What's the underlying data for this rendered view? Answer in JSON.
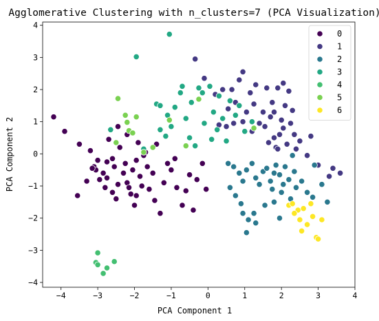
{
  "chart_data": {
    "type": "scatter",
    "title": "Agglomerative Clustering with n_clusters=7 (PCA Visualization)",
    "xlabel": "PCA Component 1",
    "ylabel": "PCA Component 2",
    "xlim": [
      -4.5,
      4.0
    ],
    "ylim": [
      -4.15,
      4.1
    ],
    "xticks": [
      -4,
      -3,
      -2,
      -1,
      0,
      1,
      2,
      3,
      4
    ],
    "yticks": [
      -4,
      -3,
      -2,
      -1,
      0,
      1,
      2,
      3,
      4
    ],
    "grid": false,
    "legend_position": "top-right",
    "series": [
      {
        "name": "0",
        "color": "#440154",
        "points": [
          [
            -4.2,
            1.15
          ],
          [
            -3.9,
            0.7
          ],
          [
            -3.5,
            0.3
          ],
          [
            -3.2,
            0.1
          ],
          [
            -3.1,
            -0.4
          ],
          [
            -3.05,
            -0.5
          ],
          [
            -3.0,
            -0.2
          ],
          [
            -2.95,
            -0.8
          ],
          [
            -2.85,
            -0.6
          ],
          [
            -3.3,
            -0.85
          ],
          [
            -3.55,
            -1.3
          ],
          [
            -2.75,
            -0.75
          ],
          [
            -2.7,
            0.45
          ],
          [
            -2.6,
            -0.15
          ],
          [
            -2.6,
            -1.2
          ],
          [
            -2.5,
            -1.4
          ],
          [
            -2.45,
            -0.95
          ],
          [
            -2.4,
            0.2
          ],
          [
            -2.3,
            -0.6
          ],
          [
            -2.25,
            -0.3
          ],
          [
            -2.2,
            -0.9
          ],
          [
            -2.1,
            -1.25
          ],
          [
            -2.0,
            -1.6
          ],
          [
            -2.05,
            -0.5
          ],
          [
            -1.95,
            -0.2
          ],
          [
            -1.9,
            0.35
          ],
          [
            -1.85,
            -0.7
          ],
          [
            -1.8,
            -1.0
          ],
          [
            -1.7,
            0.05
          ],
          [
            -1.65,
            -0.4
          ],
          [
            -1.6,
            -1.1
          ],
          [
            -1.5,
            -0.6
          ],
          [
            -1.45,
            -1.45
          ],
          [
            -1.4,
            0.3
          ],
          [
            -1.3,
            -1.85
          ],
          [
            -1.2,
            -0.9
          ],
          [
            -1.0,
            -0.5
          ],
          [
            -0.9,
            -0.15
          ],
          [
            -0.85,
            -1.05
          ],
          [
            -0.7,
            -1.6
          ],
          [
            -0.6,
            -1.15
          ],
          [
            -0.5,
            -0.65
          ],
          [
            -0.4,
            -1.75
          ],
          [
            -0.3,
            -0.8
          ],
          [
            -0.15,
            -0.3
          ],
          [
            -0.05,
            -1.1
          ],
          [
            -2.45,
            0.85
          ],
          [
            -2.2,
            0.6
          ],
          [
            -1.75,
            -0.05
          ],
          [
            -2.75,
            -0.25
          ],
          [
            -2.55,
            -0.4
          ],
          [
            -3.15,
            -0.45
          ],
          [
            -2.15,
            -1.05
          ],
          [
            -1.95,
            -1.3
          ],
          [
            -2.8,
            -1.05
          ],
          [
            -1.1,
            -0.3
          ]
        ]
      },
      {
        "name": "1",
        "color": "#443983",
        "points": [
          [
            -0.35,
            2.95
          ],
          [
            -0.1,
            2.35
          ],
          [
            0.2,
            1.85
          ],
          [
            0.4,
            2.0
          ],
          [
            0.55,
            1.4
          ],
          [
            0.65,
            2.0
          ],
          [
            0.75,
            1.6
          ],
          [
            0.85,
            2.3
          ],
          [
            0.95,
            2.55
          ],
          [
            1.05,
            1.3
          ],
          [
            1.15,
            1.9
          ],
          [
            1.25,
            1.55
          ],
          [
            1.3,
            2.15
          ],
          [
            1.4,
            0.95
          ],
          [
            1.5,
            1.3
          ],
          [
            1.6,
            2.05
          ],
          [
            1.7,
            1.15
          ],
          [
            1.75,
            1.6
          ],
          [
            1.8,
            0.5
          ],
          [
            1.85,
            0.2
          ],
          [
            1.9,
            2.05
          ],
          [
            1.95,
            0.6
          ],
          [
            2.0,
            1.05
          ],
          [
            2.05,
            0.8
          ],
          [
            2.1,
            1.5
          ],
          [
            2.15,
            0.3
          ],
          [
            2.2,
            1.95
          ],
          [
            2.25,
            0.95
          ],
          [
            2.3,
            1.35
          ],
          [
            2.35,
            0.6
          ],
          [
            2.4,
            0.15
          ],
          [
            2.5,
            0.4
          ],
          [
            2.7,
            -0.05
          ],
          [
            2.8,
            0.55
          ],
          [
            3.0,
            -0.35
          ],
          [
            3.3,
            -0.7
          ],
          [
            3.6,
            -0.6
          ],
          [
            3.4,
            -0.45
          ],
          [
            0.3,
            0.9
          ],
          [
            0.5,
            0.85
          ],
          [
            0.7,
            0.95
          ],
          [
            0.95,
            1.0
          ],
          [
            1.2,
            0.7
          ],
          [
            1.55,
            0.85
          ],
          [
            1.65,
            0.35
          ],
          [
            1.9,
            0.15
          ],
          [
            2.05,
            2.2
          ],
          [
            1.8,
            1.3
          ]
        ]
      },
      {
        "name": "2",
        "color": "#2a788e",
        "points": [
          [
            0.55,
            -0.3
          ],
          [
            0.7,
            -0.4
          ],
          [
            0.85,
            -0.6
          ],
          [
            0.95,
            -0.85
          ],
          [
            1.05,
            -0.5
          ],
          [
            1.2,
            -0.3
          ],
          [
            1.3,
            -0.75
          ],
          [
            1.4,
            -0.95
          ],
          [
            1.5,
            -0.55
          ],
          [
            1.6,
            -0.45
          ],
          [
            1.7,
            -0.85
          ],
          [
            1.75,
            -1.1
          ],
          [
            1.8,
            -0.6
          ],
          [
            1.85,
            -0.35
          ],
          [
            1.95,
            -0.65
          ],
          [
            2.0,
            -1.2
          ],
          [
            2.05,
            -0.95
          ],
          [
            2.1,
            -0.4
          ],
          [
            2.2,
            -0.8
          ],
          [
            2.25,
            -1.4
          ],
          [
            2.35,
            -0.55
          ],
          [
            2.4,
            -1.05
          ],
          [
            2.55,
            -0.85
          ],
          [
            2.7,
            -1.2
          ],
          [
            2.85,
            -1.35
          ],
          [
            3.1,
            -0.95
          ],
          [
            3.25,
            -1.5
          ],
          [
            0.6,
            -1.05
          ],
          [
            0.75,
            -1.3
          ],
          [
            0.9,
            -1.55
          ],
          [
            0.95,
            -1.85
          ],
          [
            1.1,
            -2.05
          ],
          [
            1.25,
            -1.85
          ],
          [
            1.3,
            -2.15
          ],
          [
            1.55,
            -1.6
          ],
          [
            1.8,
            -1.5
          ],
          [
            1.95,
            -2.0
          ],
          [
            1.05,
            -2.45
          ],
          [
            2.3,
            -0.05
          ],
          [
            2.9,
            -0.35
          ]
        ]
      },
      {
        "name": "3",
        "color": "#22a884",
        "points": [
          [
            -1.05,
            3.72
          ],
          [
            -1.95,
            3.02
          ],
          [
            -1.4,
            1.55
          ],
          [
            -1.3,
            1.5
          ],
          [
            -1.1,
            1.2
          ],
          [
            -1.0,
            0.85
          ],
          [
            -0.9,
            1.45
          ],
          [
            -0.75,
            1.9
          ],
          [
            -0.7,
            2.1
          ],
          [
            -0.6,
            1.1
          ],
          [
            -0.5,
            0.5
          ],
          [
            -0.45,
            1.6
          ],
          [
            -0.35,
            0.25
          ],
          [
            -0.25,
            2.05
          ],
          [
            -0.15,
            1.9
          ],
          [
            -0.1,
            0.95
          ],
          [
            0.05,
            2.1
          ],
          [
            0.15,
            1.3
          ],
          [
            0.25,
            0.75
          ],
          [
            0.3,
            1.8
          ],
          [
            0.4,
            1.1
          ],
          [
            0.5,
            0.4
          ],
          [
            0.6,
            1.65
          ],
          [
            0.75,
            1.2
          ],
          [
            1.0,
            0.7
          ],
          [
            1.2,
            1.0
          ],
          [
            0.1,
            0.45
          ],
          [
            -1.3,
            0.75
          ],
          [
            -2.65,
            0.75
          ],
          [
            -1.75,
            0.15
          ],
          [
            -1.15,
            0.55
          ],
          [
            0.85,
            1.5
          ]
        ]
      },
      {
        "name": "4",
        "color": "#43bf71",
        "points": [
          [
            -3.0,
            -3.08
          ],
          [
            -3.05,
            -3.38
          ],
          [
            -3.0,
            -3.45
          ],
          [
            -2.85,
            -3.72
          ],
          [
            -2.75,
            -3.55
          ],
          [
            -2.55,
            -3.35
          ]
        ]
      },
      {
        "name": "5",
        "color": "#7ad151",
        "points": [
          [
            -2.45,
            1.72
          ],
          [
            -2.25,
            1.2
          ],
          [
            -2.2,
            0.98
          ],
          [
            -2.15,
            0.72
          ],
          [
            -1.95,
            1.15
          ],
          [
            -2.05,
            0.65
          ],
          [
            -2.5,
            0.35
          ],
          [
            -1.75,
            0.05
          ],
          [
            -1.5,
            0.2
          ],
          [
            -0.6,
            0.25
          ],
          [
            -0.25,
            1.7
          ],
          [
            1.25,
            0.8
          ],
          [
            -1.05,
            1.05
          ]
        ]
      },
      {
        "name": "6",
        "color": "#fde725",
        "points": [
          [
            2.2,
            -1.6
          ],
          [
            2.3,
            -1.55
          ],
          [
            2.45,
            -1.75
          ],
          [
            2.5,
            -2.05
          ],
          [
            2.55,
            -2.4
          ],
          [
            2.6,
            -1.7
          ],
          [
            2.7,
            -2.2
          ],
          [
            2.8,
            -1.55
          ],
          [
            2.85,
            -1.95
          ],
          [
            2.95,
            -2.6
          ],
          [
            3.0,
            -2.65
          ],
          [
            3.1,
            -2.05
          ],
          [
            2.35,
            -1.85
          ]
        ]
      }
    ]
  }
}
